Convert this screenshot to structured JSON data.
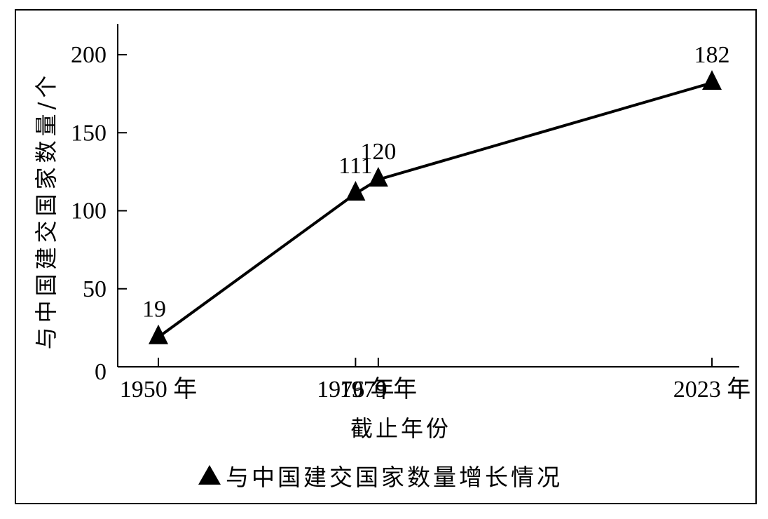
{
  "chart_data": {
    "type": "line",
    "x": [
      "1950 年",
      "1976 年",
      "1979 年",
      "2023 年"
    ],
    "x_years": [
      1950,
      1976,
      1979,
      2023
    ],
    "series": [
      {
        "name": "与中国建交国家数量增长情况",
        "values": [
          19,
          111,
          120,
          182
        ],
        "marker": "triangle",
        "color": "#000000"
      }
    ],
    "data_labels": [
      "19",
      "111",
      "120",
      "182"
    ],
    "xlabel": "截止年份",
    "ylabel": "与中国建交国家数量/个",
    "ylim": [
      0,
      220
    ],
    "yticks": [
      0,
      50,
      100,
      150,
      200
    ],
    "ytick_labels": [
      "0",
      "50",
      "100",
      "150",
      "200"
    ],
    "grid": false,
    "legend_position": "bottom-center"
  }
}
